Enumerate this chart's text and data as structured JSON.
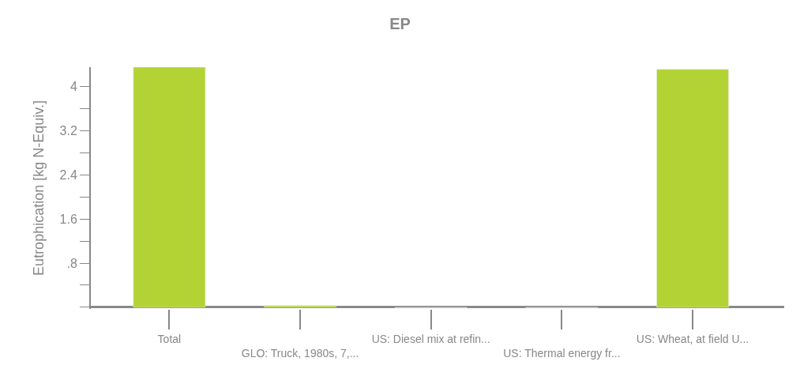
{
  "chart_data": {
    "type": "bar",
    "title": "EP",
    "ylabel": "Eutrophication [kg N-Equiv.]",
    "categories": [
      "Total",
      "GLO: Truck, 1980s, 7,...",
      "US: Diesel mix at refin...",
      "US: Thermal energy fr...",
      "US: Wheat, at field U..."
    ],
    "values": [
      4.35,
      0.03,
      -0.01,
      -0.01,
      4.31
    ],
    "color": "#b3d334",
    "ylim": [
      -0.03,
      4.35
    ],
    "yticks": [
      {
        "value": 0,
        "label": null
      },
      {
        "value": 0.4,
        "label": null
      },
      {
        "value": 0.8,
        "label": ".8"
      },
      {
        "value": 1.2,
        "label": null
      },
      1.6,
      {
        "value": 2.0,
        "label": null
      },
      2.4,
      {
        "value": 2.8,
        "label": null
      },
      3.2,
      {
        "value": 3.6,
        "label": null
      },
      4
    ],
    "legend": false
  }
}
